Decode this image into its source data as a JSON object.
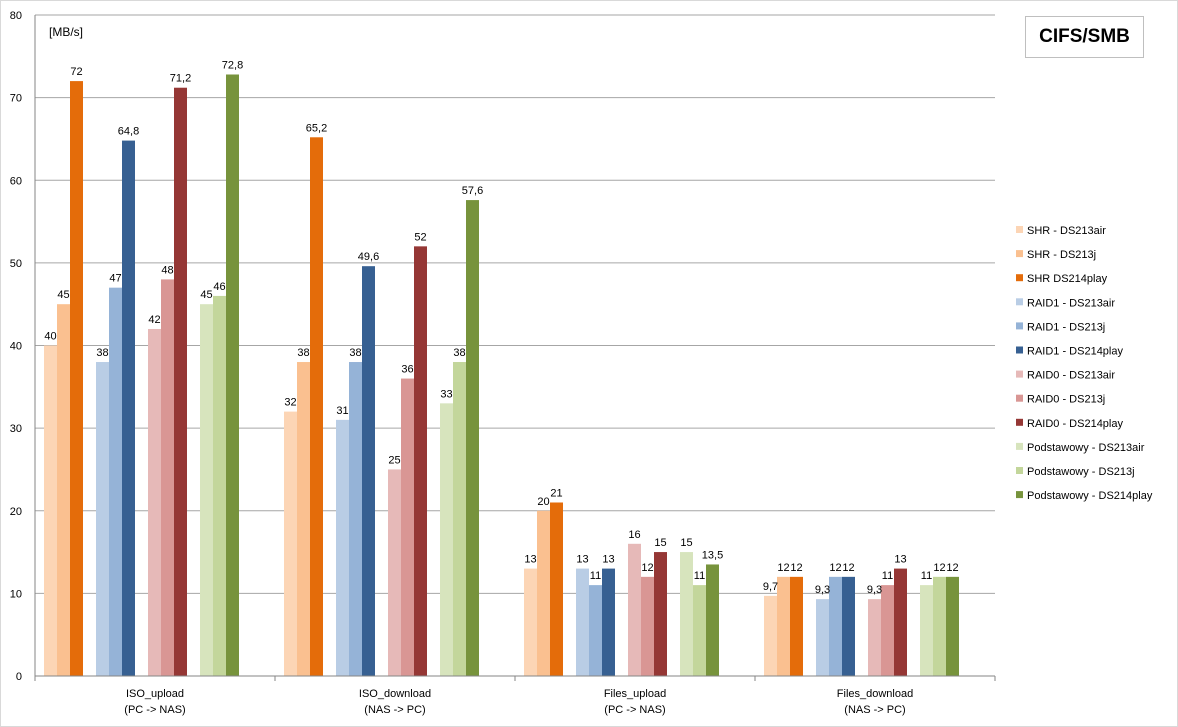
{
  "chart_data": {
    "type": "bar",
    "title": "CIFS/SMB",
    "ylabel": "[MB/s]",
    "xlabel": "",
    "ylim": [
      0,
      80
    ],
    "yticks": [
      0,
      10,
      20,
      30,
      40,
      50,
      60,
      70,
      80
    ],
    "grid": true,
    "legend_position": "right",
    "categories": [
      [
        "ISO_upload",
        "(PC -> NAS)"
      ],
      [
        "ISO_download",
        "(NAS -> PC)"
      ],
      [
        "Files_upload",
        "(PC -> NAS)"
      ],
      [
        "Files_download",
        "(NAS -> PC)"
      ]
    ],
    "series": [
      {
        "name": "SHR - DS213air",
        "color": "#FCD5B5",
        "values": [
          40,
          32,
          13,
          9.7
        ],
        "labels": [
          "40",
          "32",
          "13",
          "9,7"
        ]
      },
      {
        "name": "SHR - DS213j",
        "color": "#FAC090",
        "values": [
          45,
          38,
          20,
          12
        ],
        "labels": [
          "45",
          "38",
          "20",
          "12"
        ]
      },
      {
        "name": "SHR DS214play",
        "color": "#E46C0A",
        "values": [
          72,
          65.2,
          21,
          12
        ],
        "labels": [
          "72",
          "65,2",
          "21",
          "12"
        ]
      },
      {
        "name": "RAID1 - DS213air",
        "color": "#B9CDE5",
        "values": [
          38,
          31,
          13,
          9.3
        ],
        "labels": [
          "38",
          "31",
          "13",
          "9,3"
        ]
      },
      {
        "name": "RAID1 - DS213j",
        "color": "#95B3D7",
        "values": [
          47,
          38,
          11,
          12
        ],
        "labels": [
          "47",
          "38",
          "11",
          "12"
        ]
      },
      {
        "name": "RAID1 - DS214play",
        "color": "#376092",
        "values": [
          64.8,
          49.6,
          13,
          12
        ],
        "labels": [
          "64,8",
          "49,6",
          "13",
          "12"
        ]
      },
      {
        "name": "RAID0 - DS213air",
        "color": "#E6B9B8",
        "values": [
          42,
          25,
          16,
          9.3
        ],
        "labels": [
          "42",
          "25",
          "16",
          "9,3"
        ]
      },
      {
        "name": "RAID0 - DS213j",
        "color": "#D99694",
        "values": [
          48,
          36,
          12,
          11
        ],
        "labels": [
          "48",
          "36",
          "12",
          "11"
        ]
      },
      {
        "name": "RAID0 - DS214play",
        "color": "#953735",
        "values": [
          71.2,
          52,
          15,
          13
        ],
        "labels": [
          "71,2",
          "52",
          "15",
          "13"
        ]
      },
      {
        "name": "Podstawowy - DS213air",
        "color": "#D7E4BD",
        "values": [
          45,
          33,
          15,
          11
        ],
        "labels": [
          "45",
          "33",
          "15",
          "11"
        ]
      },
      {
        "name": "Podstawowy - DS213j",
        "color": "#C3D69B",
        "values": [
          46,
          38,
          11,
          12
        ],
        "labels": [
          "46",
          "38",
          "11",
          "12"
        ]
      },
      {
        "name": "Podstawowy - DS214play",
        "color": "#77933C",
        "values": [
          72.8,
          57.6,
          13.5,
          12
        ],
        "labels": [
          "72,8",
          "57,6",
          "13,5",
          "12"
        ]
      }
    ]
  }
}
